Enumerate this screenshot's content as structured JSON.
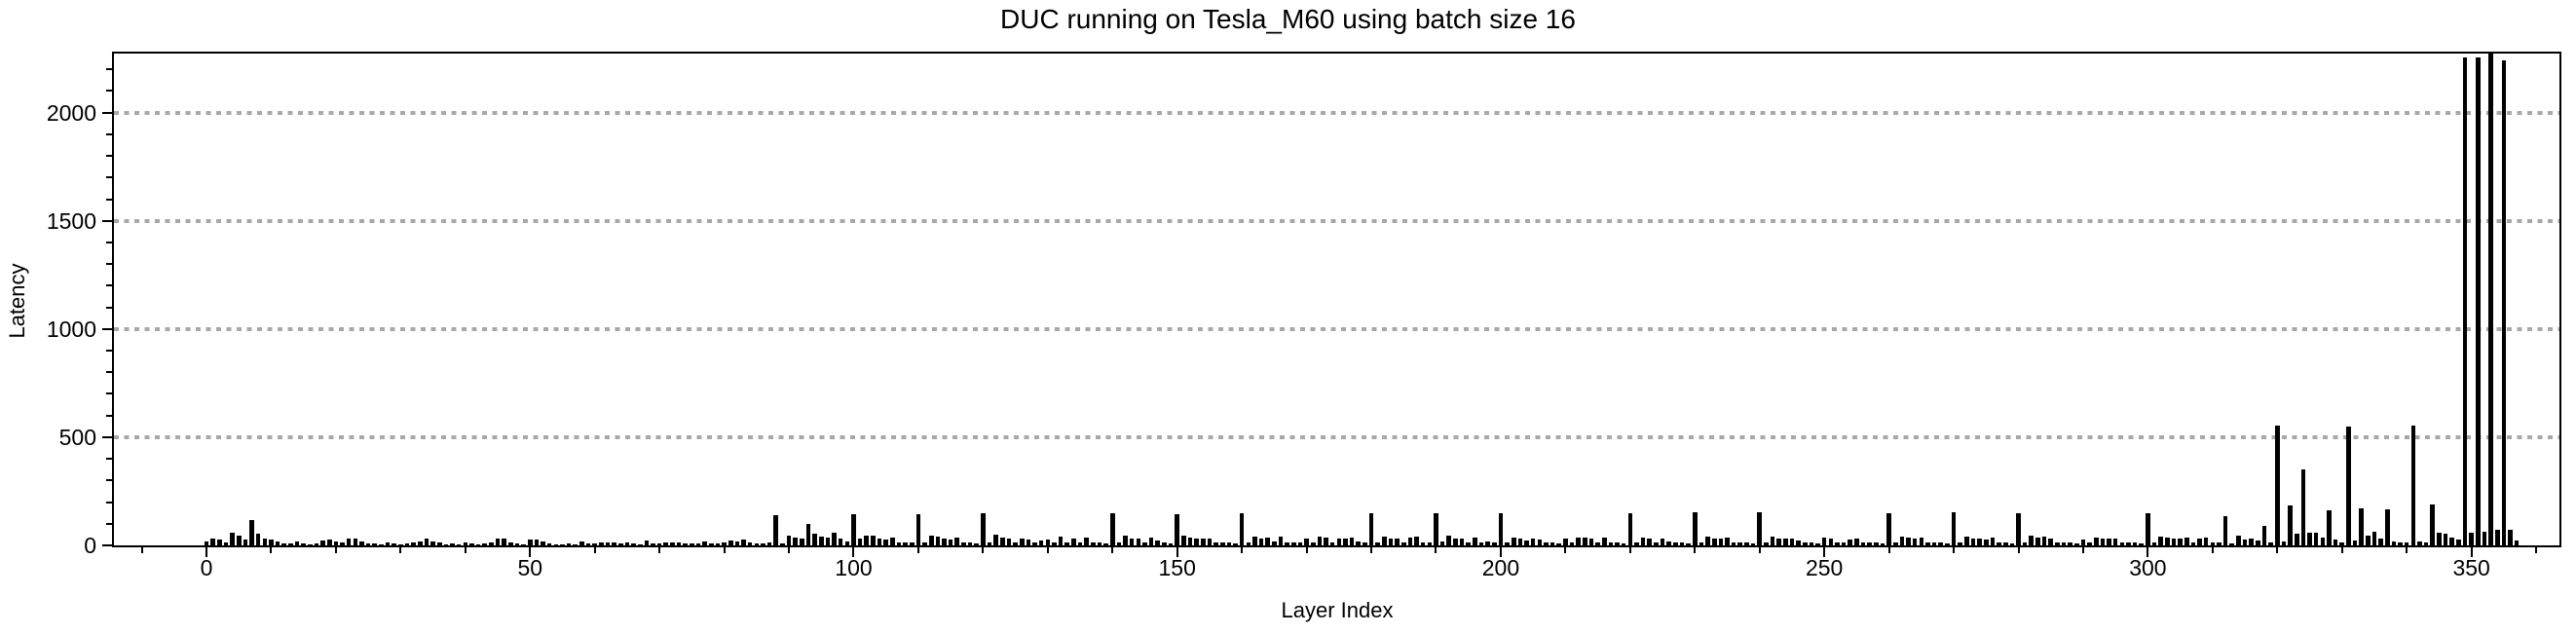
{
  "chart_data": {
    "type": "bar",
    "title": "DUC running on Tesla_M60 using batch size 16",
    "xlabel": "Layer Index",
    "ylabel": "Latency",
    "bar_color": "#000000",
    "grid_color": "#a8a8a8",
    "grid": "horizontal dotted lines at major y ticks",
    "legend": "none",
    "x_tick_values": [
      0,
      50,
      100,
      150,
      200,
      250,
      300,
      350
    ],
    "y_tick_values": [
      0,
      500,
      1000,
      1500,
      2000
    ],
    "x_minor_step": 10,
    "y_minor_step": 100,
    "xlim": [
      -14.3,
      363.6
    ],
    "ylim": [
      0,
      2273
    ],
    "x_start_index": 0,
    "values": [
      18,
      30,
      25,
      15,
      58,
      45,
      25,
      115,
      55,
      30,
      25,
      20,
      8,
      8,
      18,
      8,
      5,
      10,
      22,
      28,
      18,
      12,
      30,
      33,
      18,
      10,
      8,
      5,
      12,
      8,
      5,
      10,
      15,
      18,
      33,
      18,
      12,
      5,
      8,
      5,
      12,
      8,
      5,
      10,
      15,
      30,
      30,
      12,
      8,
      5,
      27,
      27,
      18,
      8,
      5,
      5,
      8,
      5,
      18,
      8,
      10,
      15,
      15,
      12,
      10,
      15,
      8,
      5,
      22,
      10,
      8,
      15,
      15,
      12,
      8,
      10,
      8,
      18,
      10,
      8,
      12,
      22,
      18,
      27,
      12,
      8,
      10,
      12,
      140,
      10,
      45,
      38,
      30,
      97,
      52,
      42,
      38,
      57,
      30,
      20,
      143,
      30,
      45,
      45,
      30,
      27,
      38,
      15,
      15,
      12,
      143,
      15,
      45,
      42,
      30,
      27,
      38,
      12,
      15,
      10,
      150,
      15,
      48,
      38,
      30,
      15,
      33,
      27,
      12,
      22,
      27,
      12,
      42,
      15,
      33,
      12,
      38,
      15,
      12,
      10,
      147,
      15,
      45,
      33,
      33,
      15,
      38,
      22,
      12,
      10,
      143,
      45,
      38,
      33,
      30,
      33,
      12,
      12,
      15,
      10,
      147,
      15,
      42,
      33,
      38,
      18,
      42,
      15,
      15,
      12,
      30,
      15,
      42,
      38,
      12,
      30,
      33,
      38,
      18,
      12,
      147,
      15,
      42,
      30,
      33,
      12,
      38,
      42,
      15,
      12,
      147,
      18,
      45,
      33,
      30,
      12,
      38,
      15,
      18,
      12,
      147,
      15,
      38,
      30,
      22,
      33,
      27,
      12,
      15,
      10,
      30,
      15,
      38,
      38,
      33,
      12,
      38,
      15,
      12,
      10,
      150,
      15,
      38,
      33,
      12,
      33,
      18,
      12,
      15,
      10,
      155,
      15,
      42,
      33,
      30,
      38,
      12,
      15,
      12,
      10,
      155,
      15,
      42,
      33,
      30,
      33,
      22,
      12,
      15,
      10,
      38,
      33,
      15,
      12,
      27,
      33,
      12,
      15,
      12,
      10,
      150,
      15,
      42,
      38,
      33,
      38,
      12,
      15,
      12,
      10,
      152,
      15,
      42,
      30,
      33,
      27,
      38,
      12,
      15,
      10,
      150,
      15,
      45,
      38,
      42,
      33,
      12,
      15,
      12,
      10,
      27,
      15,
      38,
      30,
      33,
      30,
      12,
      15,
      12,
      10,
      150,
      15,
      42,
      38,
      33,
      30,
      38,
      15,
      30,
      38,
      12,
      15,
      135,
      10,
      45,
      28,
      30,
      22,
      90,
      15,
      552,
      20,
      185,
      52,
      352,
      60,
      58,
      38,
      160,
      25,
      15,
      550,
      22,
      172,
      45,
      63,
      33,
      165,
      20,
      15,
      12,
      552,
      20,
      15,
      187,
      60,
      52,
      38,
      25,
      2255,
      60,
      2255,
      65,
      2275,
      70,
      2240,
      70,
      23
    ]
  }
}
